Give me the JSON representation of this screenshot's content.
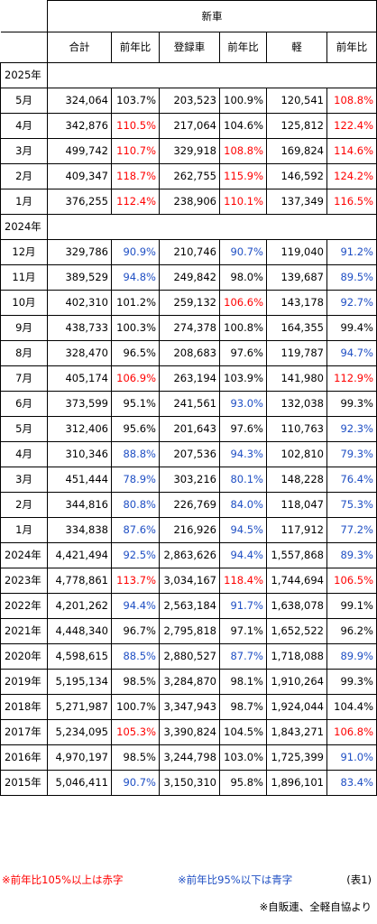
{
  "header": {
    "group_title": "新車",
    "columns": [
      "合計",
      "前年比",
      "登録車",
      "前年比",
      "軽",
      "前年比"
    ]
  },
  "sections": [
    {
      "year_label": "2025年",
      "rows": [
        {
          "label": "5月",
          "total": "324,064",
          "total_yoy": "103.7%",
          "total_color": "black",
          "reg": "203,523",
          "reg_yoy": "100.9%",
          "reg_color": "black",
          "kei": "120,541",
          "kei_yoy": "108.8%",
          "kei_color": "red"
        },
        {
          "label": "4月",
          "total": "342,876",
          "total_yoy": "110.5%",
          "total_color": "red",
          "reg": "217,064",
          "reg_yoy": "104.6%",
          "reg_color": "black",
          "kei": "125,812",
          "kei_yoy": "122.4%",
          "kei_color": "red"
        },
        {
          "label": "3月",
          "total": "499,742",
          "total_yoy": "110.7%",
          "total_color": "red",
          "reg": "329,918",
          "reg_yoy": "108.8%",
          "reg_color": "red",
          "kei": "169,824",
          "kei_yoy": "114.6%",
          "kei_color": "red"
        },
        {
          "label": "2月",
          "total": "409,347",
          "total_yoy": "118.7%",
          "total_color": "red",
          "reg": "262,755",
          "reg_yoy": "115.9%",
          "reg_color": "red",
          "kei": "146,592",
          "kei_yoy": "124.2%",
          "kei_color": "red"
        },
        {
          "label": "1月",
          "total": "376,255",
          "total_yoy": "112.4%",
          "total_color": "red",
          "reg": "238,906",
          "reg_yoy": "110.1%",
          "reg_color": "red",
          "kei": "137,349",
          "kei_yoy": "116.5%",
          "kei_color": "red"
        }
      ]
    },
    {
      "year_label": "2024年",
      "rows": [
        {
          "label": "12月",
          "total": "329,786",
          "total_yoy": "90.9%",
          "total_color": "blue",
          "reg": "210,746",
          "reg_yoy": "90.7%",
          "reg_color": "blue",
          "kei": "119,040",
          "kei_yoy": "91.2%",
          "kei_color": "blue"
        },
        {
          "label": "11月",
          "total": "389,529",
          "total_yoy": "94.8%",
          "total_color": "blue",
          "reg": "249,842",
          "reg_yoy": "98.0%",
          "reg_color": "black",
          "kei": "139,687",
          "kei_yoy": "89.5%",
          "kei_color": "blue"
        },
        {
          "label": "10月",
          "total": "402,310",
          "total_yoy": "101.2%",
          "total_color": "black",
          "reg": "259,132",
          "reg_yoy": "106.6%",
          "reg_color": "red",
          "kei": "143,178",
          "kei_yoy": "92.7%",
          "kei_color": "blue"
        },
        {
          "label": "9月",
          "total": "438,733",
          "total_yoy": "100.3%",
          "total_color": "black",
          "reg": "274,378",
          "reg_yoy": "100.8%",
          "reg_color": "black",
          "kei": "164,355",
          "kei_yoy": "99.4%",
          "kei_color": "black"
        },
        {
          "label": "8月",
          "total": "328,470",
          "total_yoy": "96.5%",
          "total_color": "black",
          "reg": "208,683",
          "reg_yoy": "97.6%",
          "reg_color": "black",
          "kei": "119,787",
          "kei_yoy": "94.7%",
          "kei_color": "blue"
        },
        {
          "label": "7月",
          "total": "405,174",
          "total_yoy": "106.9%",
          "total_color": "red",
          "reg": "263,194",
          "reg_yoy": "103.9%",
          "reg_color": "black",
          "kei": "141,980",
          "kei_yoy": "112.9%",
          "kei_color": "red"
        },
        {
          "label": "6月",
          "total": "373,599",
          "total_yoy": "95.1%",
          "total_color": "black",
          "reg": "241,561",
          "reg_yoy": "93.0%",
          "reg_color": "blue",
          "kei": "132,038",
          "kei_yoy": "99.3%",
          "kei_color": "black"
        },
        {
          "label": "5月",
          "total": "312,406",
          "total_yoy": "95.6%",
          "total_color": "black",
          "reg": "201,643",
          "reg_yoy": "97.6%",
          "reg_color": "black",
          "kei": "110,763",
          "kei_yoy": "92.3%",
          "kei_color": "blue"
        },
        {
          "label": "4月",
          "total": "310,346",
          "total_yoy": "88.8%",
          "total_color": "blue",
          "reg": "207,536",
          "reg_yoy": "94.3%",
          "reg_color": "blue",
          "kei": "102,810",
          "kei_yoy": "79.3%",
          "kei_color": "blue"
        },
        {
          "label": "3月",
          "total": "451,444",
          "total_yoy": "78.9%",
          "total_color": "blue",
          "reg": "303,216",
          "reg_yoy": "80.1%",
          "reg_color": "blue",
          "kei": "148,228",
          "kei_yoy": "76.4%",
          "kei_color": "blue"
        },
        {
          "label": "2月",
          "total": "344,816",
          "total_yoy": "80.8%",
          "total_color": "blue",
          "reg": "226,769",
          "reg_yoy": "84.0%",
          "reg_color": "blue",
          "kei": "118,047",
          "kei_yoy": "75.3%",
          "kei_color": "blue"
        },
        {
          "label": "1月",
          "total": "334,838",
          "total_yoy": "87.6%",
          "total_color": "blue",
          "reg": "216,926",
          "reg_yoy": "94.5%",
          "reg_color": "blue",
          "kei": "117,912",
          "kei_yoy": "77.2%",
          "kei_color": "blue"
        }
      ]
    }
  ],
  "annual_rows": [
    {
      "label": "2024年",
      "total": "4,421,494",
      "total_yoy": "92.5%",
      "total_color": "blue",
      "reg": "2,863,626",
      "reg_yoy": "94.4%",
      "reg_color": "blue",
      "kei": "1,557,868",
      "kei_yoy": "89.3%",
      "kei_color": "blue"
    },
    {
      "label": "2023年",
      "total": "4,778,861",
      "total_yoy": "113.7%",
      "total_color": "red",
      "reg": "3,034,167",
      "reg_yoy": "118.4%",
      "reg_color": "red",
      "kei": "1,744,694",
      "kei_yoy": "106.5%",
      "kei_color": "red"
    },
    {
      "label": "2022年",
      "total": "4,201,262",
      "total_yoy": "94.4%",
      "total_color": "blue",
      "reg": "2,563,184",
      "reg_yoy": "91.7%",
      "reg_color": "blue",
      "kei": "1,638,078",
      "kei_yoy": "99.1%",
      "kei_color": "black"
    },
    {
      "label": "2021年",
      "total": "4,448,340",
      "total_yoy": "96.7%",
      "total_color": "black",
      "reg": "2,795,818",
      "reg_yoy": "97.1%",
      "reg_color": "black",
      "kei": "1,652,522",
      "kei_yoy": "96.2%",
      "kei_color": "black"
    },
    {
      "label": "2020年",
      "total": "4,598,615",
      "total_yoy": "88.5%",
      "total_color": "blue",
      "reg": "2,880,527",
      "reg_yoy": "87.7%",
      "reg_color": "blue",
      "kei": "1,718,088",
      "kei_yoy": "89.9%",
      "kei_color": "blue"
    },
    {
      "label": "2019年",
      "total": "5,195,134",
      "total_yoy": "98.5%",
      "total_color": "black",
      "reg": "3,284,870",
      "reg_yoy": "98.1%",
      "reg_color": "black",
      "kei": "1,910,264",
      "kei_yoy": "99.3%",
      "kei_color": "black"
    },
    {
      "label": "2018年",
      "total": "5,271,987",
      "total_yoy": "100.7%",
      "total_color": "black",
      "reg": "3,347,943",
      "reg_yoy": "98.7%",
      "reg_color": "black",
      "kei": "1,924,044",
      "kei_yoy": "104.4%",
      "kei_color": "black"
    },
    {
      "label": "2017年",
      "total": "5,234,095",
      "total_yoy": "105.3%",
      "total_color": "red",
      "reg": "3,390,824",
      "reg_yoy": "104.5%",
      "reg_color": "black",
      "kei": "1,843,271",
      "kei_yoy": "106.8%",
      "kei_color": "red"
    },
    {
      "label": "2016年",
      "total": "4,970,197",
      "total_yoy": "98.5%",
      "total_color": "black",
      "reg": "3,244,798",
      "reg_yoy": "103.0%",
      "reg_color": "black",
      "kei": "1,725,399",
      "kei_yoy": "91.0%",
      "kei_color": "blue"
    },
    {
      "label": "2015年",
      "total": "5,046,411",
      "total_yoy": "90.7%",
      "total_color": "blue",
      "reg": "3,150,310",
      "reg_yoy": "95.8%",
      "reg_color": "black",
      "kei": "1,896,101",
      "kei_yoy": "83.4%",
      "kei_color": "blue"
    }
  ],
  "legend": {
    "red_note": "※前年比105%以上は赤字",
    "blue_note": "※前年比95%以下は青字",
    "table_label": "(表1)"
  },
  "source": "※自販連、全軽自協より",
  "colors": {
    "red": "#ff0000",
    "blue": "#1f4fc4",
    "black": "#000000"
  }
}
